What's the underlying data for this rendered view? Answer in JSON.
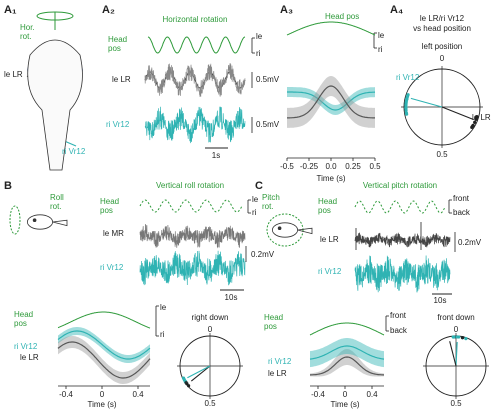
{
  "A1": {
    "label": "A₁",
    "rotation": [
      "Hor.",
      "rot."
    ],
    "left_nerve": "le LR",
    "right_nerve": "ri Vr12"
  },
  "A2": {
    "label": "A₂",
    "title": "Horizontal rotation",
    "head_pos": [
      "Head",
      "pos"
    ],
    "le": "le",
    "ri": "ri",
    "trace1": "le LR",
    "scale1": "0.5mV",
    "trace2": "ri Vr12",
    "scale2": "0.5mV",
    "time_scale": "1s"
  },
  "A3": {
    "label": "A₃",
    "head_pos": "Head pos",
    "le": "le",
    "ri": "ri",
    "xticks": [
      "-0.5",
      "-0.25",
      "0.0",
      "0.25",
      "0.5"
    ],
    "xlabel": "Time (s)"
  },
  "A4": {
    "label": "A₄",
    "title": [
      "le LR/ri Vr12",
      "vs head position"
    ],
    "polar_title": "left position",
    "top": "0",
    "bottom": "0.5",
    "right_nerve": "ri Vr12",
    "left_nerve": "le LR"
  },
  "B": {
    "label": "B",
    "rotation": [
      "Roll",
      "rot."
    ],
    "title": "Vertical roll rotation",
    "head_pos": [
      "Head",
      "pos"
    ],
    "le": "le",
    "ri": "ri",
    "trace1": "le MR",
    "scale": "0.2mV",
    "trace2": "ri Vr12",
    "time_scale": "10s",
    "avg": {
      "head_pos": [
        "Head",
        "pos"
      ],
      "le": "le",
      "ri": "ri",
      "right_nerve": "ri Vr12",
      "left_nerve": "le LR",
      "xticks": [
        "-0.4",
        "0",
        "0.4"
      ],
      "xlabel": "Time (s)"
    },
    "polar": {
      "title": "right down",
      "top": "0",
      "bottom": "0.5"
    }
  },
  "C": {
    "label": "C",
    "rotation": [
      "Pitch",
      "rot."
    ],
    "title": "Vertical pitch rotation",
    "head_pos": [
      "Head",
      "pos"
    ],
    "front": "front",
    "back": "back",
    "trace1": "le LR",
    "scale": "0.2mV",
    "trace2": "ri Vr12",
    "time_scale": "10s",
    "avg": {
      "head_pos": [
        "Head",
        "pos"
      ],
      "front": "front",
      "back": "back",
      "right_nerve": "ri Vr12",
      "left_nerve": "le LR",
      "xticks": [
        "-0.4",
        "0",
        "0.4"
      ],
      "xlabel": "Time (s)"
    },
    "polar": {
      "title": "front down",
      "top": "0",
      "bottom": "0.5"
    }
  }
}
